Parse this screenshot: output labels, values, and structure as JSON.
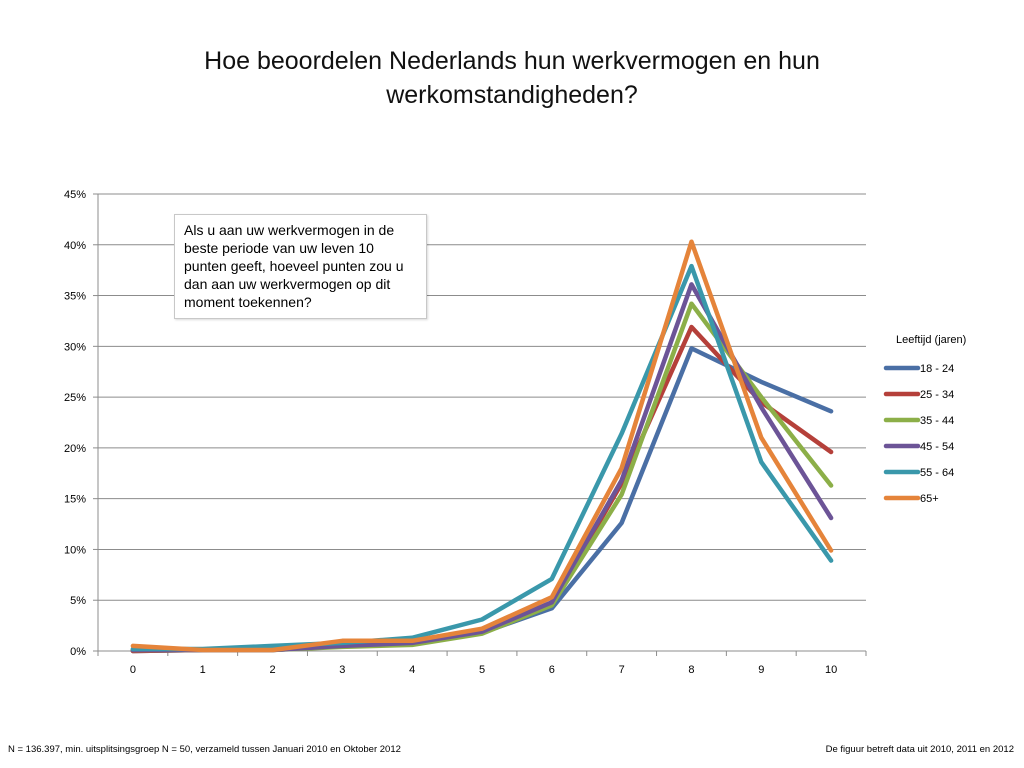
{
  "title": "Hoe beoordelen Nederlands hun werkvermogen en hun werkomstandigheden?",
  "callout_text": "Als u aan uw werkvermogen in de beste periode van uw leven 10 punten geeft, hoeveel punten zou u dan aan uw werkvermogen op dit moment toekennen?",
  "footnote_left": "N = 136.397, min. uitsplitsingsgroep N = 50, verzameld tussen Januari 2010 en Oktober 2012",
  "footnote_right": "De figuur betreft data uit 2010, 2011 en 2012",
  "chart_data": {
    "type": "line",
    "title": "",
    "xlabel": "",
    "ylabel": "",
    "x": [
      0,
      1,
      2,
      3,
      4,
      5,
      6,
      7,
      8,
      9,
      10
    ],
    "x_tick_labels": [
      "0",
      "1",
      "2",
      "3",
      "4",
      "5",
      "6",
      "7",
      "8",
      "9",
      "10"
    ],
    "ylim": [
      0,
      45
    ],
    "y_ticks": [
      0,
      5,
      10,
      15,
      20,
      25,
      30,
      35,
      40,
      45
    ],
    "y_tick_labels": [
      "0%",
      "5%",
      "10%",
      "15%",
      "20%",
      "25%",
      "30%",
      "35%",
      "40%",
      "45%"
    ],
    "grid": "horizontal",
    "legend": {
      "title": "Leeftijd (jaren)",
      "position": "right"
    },
    "series": [
      {
        "name": "18 - 24",
        "color": "#4a6fa5",
        "values": [
          0.0,
          0.1,
          0.3,
          0.6,
          0.8,
          1.8,
          4.2,
          12.6,
          29.8,
          26.5,
          23.6
        ]
      },
      {
        "name": "25 - 34",
        "color": "#b5403a",
        "values": [
          0.0,
          0.1,
          0.1,
          0.5,
          0.7,
          1.9,
          4.6,
          16.5,
          31.9,
          24.5,
          19.6
        ]
      },
      {
        "name": "35 - 44",
        "color": "#8caf48",
        "values": [
          0.1,
          0.1,
          0.1,
          0.4,
          0.6,
          1.7,
          4.5,
          15.4,
          34.2,
          25.0,
          16.3
        ]
      },
      {
        "name": "45 - 54",
        "color": "#6c5497",
        "values": [
          0.1,
          0.1,
          0.1,
          0.5,
          0.8,
          1.9,
          4.8,
          16.8,
          36.1,
          24.0,
          13.1
        ]
      },
      {
        "name": "55 - 64",
        "color": "#3a98ab",
        "values": [
          0.2,
          0.2,
          0.5,
          0.8,
          1.3,
          3.1,
          7.1,
          21.4,
          37.9,
          18.6,
          8.9
        ]
      },
      {
        "name": "65+",
        "color": "#e5843a",
        "values": [
          0.5,
          0.1,
          0.1,
          1.0,
          1.0,
          2.2,
          5.3,
          18.0,
          40.3,
          21.0,
          9.9
        ]
      }
    ]
  }
}
